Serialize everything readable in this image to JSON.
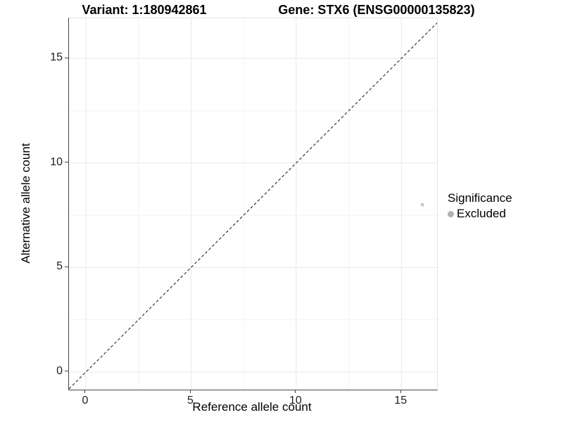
{
  "header": {
    "variant_title": "Variant: 1:180942861",
    "gene_title": "Gene: STX6 (ENSG00000135823)"
  },
  "colors": {
    "background": "#ffffff",
    "axis_line": "#474747",
    "grid_major": "#e8e8e8",
    "grid_minor": "#f3f3f3",
    "identity_line": "#111111",
    "point": "#c8c8c8",
    "legend_key": "#b0b0b0",
    "tick_text": "#1f1f1f"
  },
  "chart_data": {
    "type": "scatter",
    "title_left": "Variant: 1:180942861",
    "title_right": "Gene: STX6 (ENSG00000135823)",
    "xlabel": "Reference allele count",
    "ylabel": "Alternative allele count",
    "x": {
      "ticks": [
        0,
        5,
        10,
        15
      ],
      "minor_ticks": [
        2.5,
        7.5,
        12.5
      ],
      "range": [
        -0.803,
        16.697
      ]
    },
    "y": {
      "ticks": [
        0,
        5,
        10,
        15
      ],
      "minor_ticks": [
        2.5,
        7.5,
        12.5
      ],
      "range": [
        -0.841,
        16.919
      ]
    },
    "grid": true,
    "identity_line": {
      "slope": 1,
      "intercept": 0,
      "style": "dashed"
    },
    "points": [
      {
        "x": 16,
        "y": 8,
        "series": "Excluded",
        "radius": 2.5
      }
    ],
    "legend": {
      "title": "Significance",
      "position": "right",
      "entries": [
        {
          "label": "Excluded",
          "color": "#b0b0b0"
        }
      ]
    }
  }
}
